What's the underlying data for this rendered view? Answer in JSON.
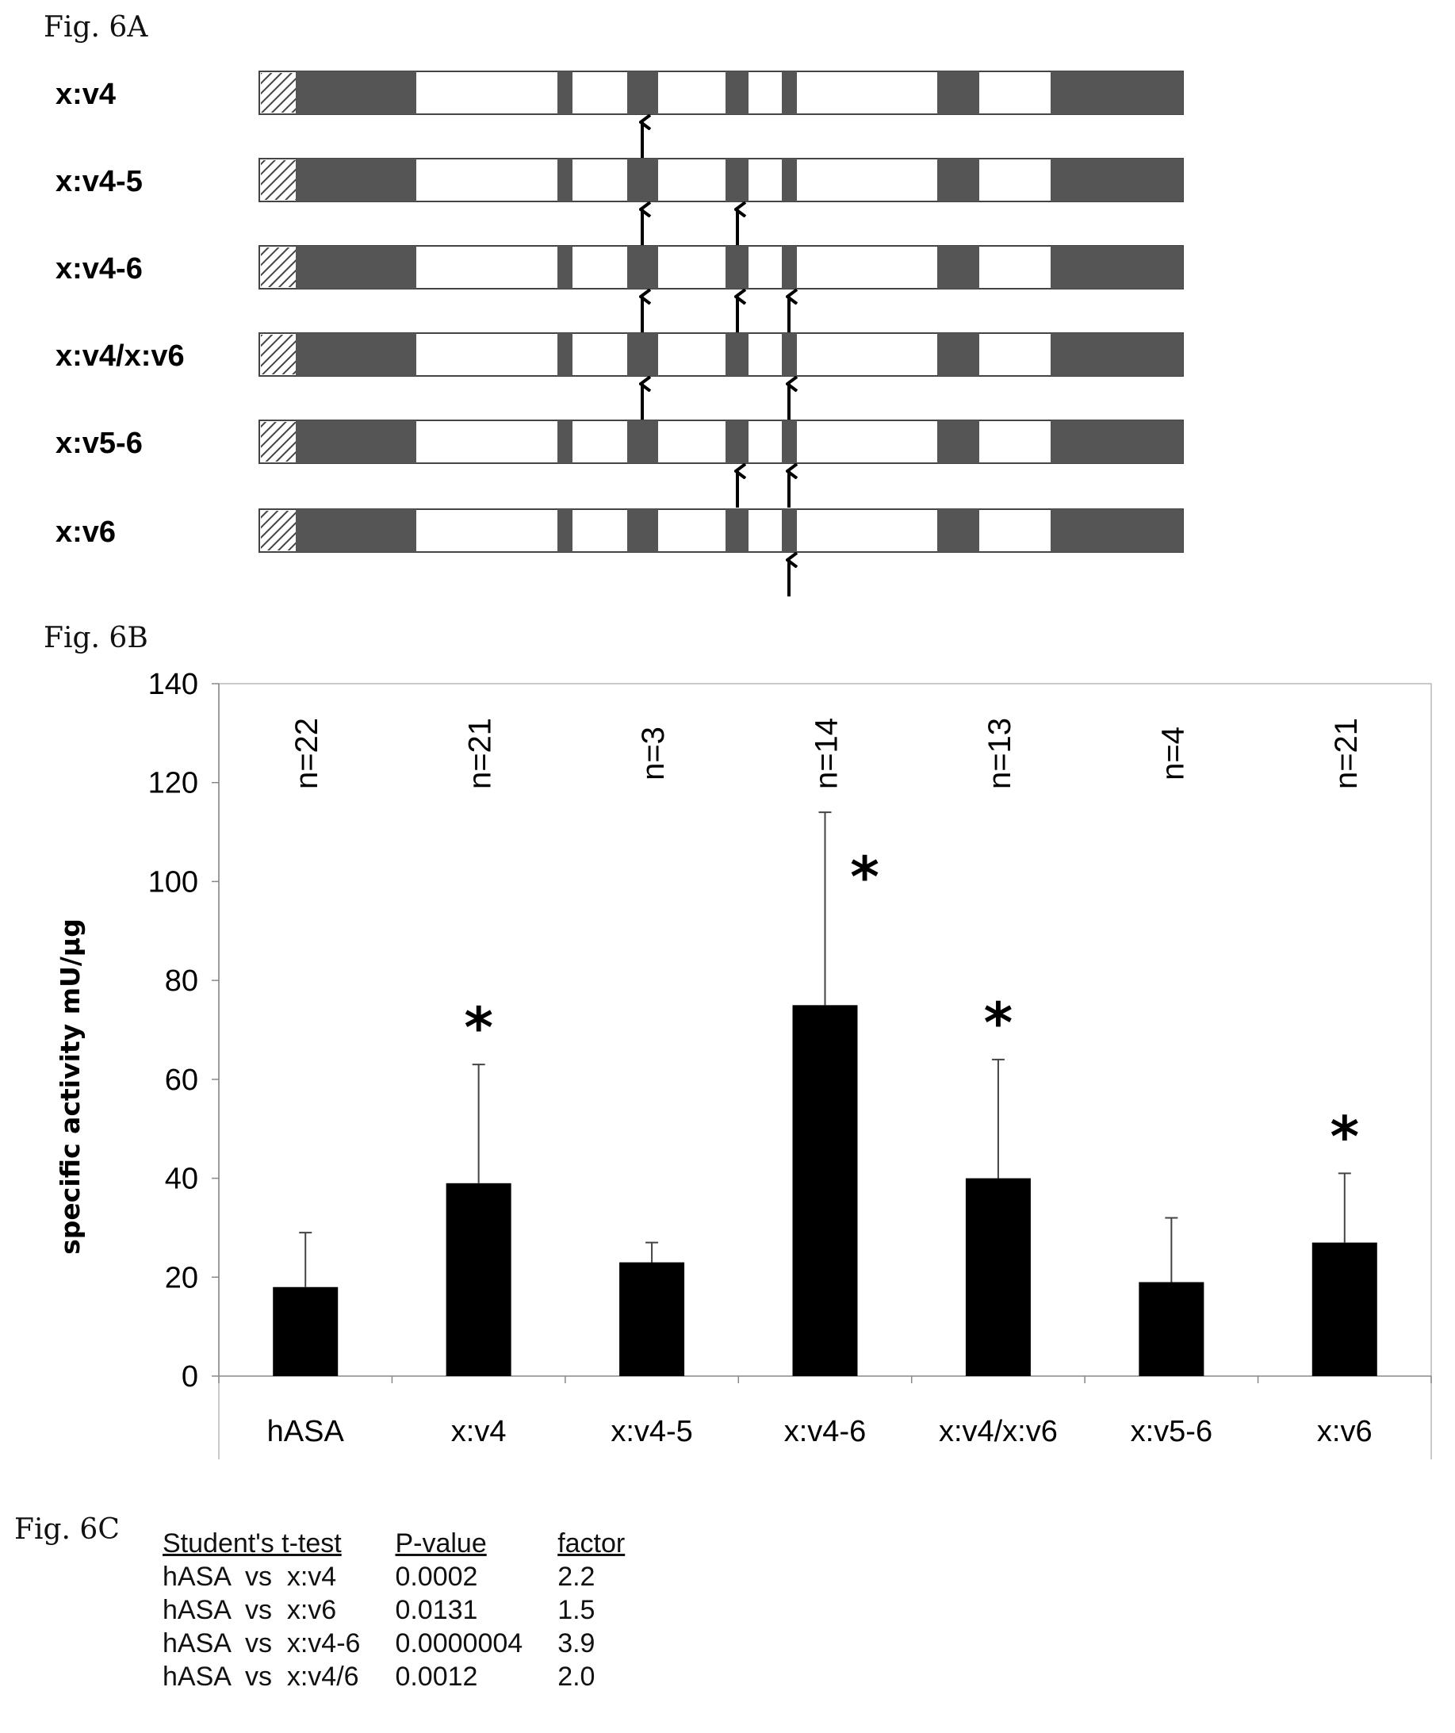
{
  "fig_a": {
    "label": "Fig. 6A",
    "constructs": [
      {
        "name": "x:v4",
        "arrows": [
          "v4"
        ]
      },
      {
        "name": "x:v4-5",
        "arrows": [
          "v4",
          "v5"
        ]
      },
      {
        "name": "x:v4-6",
        "arrows": [
          "v4",
          "v5",
          "v6"
        ]
      },
      {
        "name": "x:v4/x:v6",
        "arrows": [
          "v4",
          "v6"
        ]
      },
      {
        "name": "x:v5-6",
        "arrows": [
          "v5",
          "v6"
        ]
      },
      {
        "name": "x:v6",
        "arrows": [
          "v6"
        ]
      }
    ],
    "colors": {
      "segment_dark": "#555555",
      "segment_light": "#ffffff",
      "outline": "#444444",
      "arrow": "#000000"
    }
  },
  "fig_b": {
    "label": "Fig. 6B",
    "chart_data": {
      "type": "bar",
      "categories": [
        "hASA",
        "x:v4",
        "x:v4-5",
        "x:v4-6",
        "x:v4/x:v6",
        "x:v5-6",
        "x:v6"
      ],
      "values": [
        18,
        39,
        23,
        75,
        40,
        19,
        27
      ],
      "error_upper": [
        29,
        63,
        27,
        114,
        64,
        32,
        41
      ],
      "n_labels": [
        "n=22",
        "n=21",
        "n=3",
        "n=14",
        "n=13",
        "n=4",
        "n=21"
      ],
      "significant": [
        false,
        true,
        false,
        true,
        true,
        false,
        true
      ],
      "significance_marker": "*",
      "ylabel": "specific activity mU/µg",
      "xlabel": "",
      "ylim": [
        0,
        140
      ],
      "yticks": [
        "0",
        "20",
        "40",
        "60",
        "80",
        "100",
        "120",
        "140"
      ],
      "grid": false,
      "bar_color": "#000000"
    }
  },
  "fig_c": {
    "label": "Fig. 6C",
    "headers": [
      "Student's t-test",
      "P-value",
      "factor"
    ],
    "rows": [
      {
        "comparison": "hASA  vs  x:v4",
        "p": "0.0002",
        "factor": "2.2"
      },
      {
        "comparison": "hASA  vs  x:v6",
        "p": "0.0131",
        "factor": "1.5"
      },
      {
        "comparison": "hASA  vs  x:v4-6",
        "p": "0.0000004",
        "factor": "3.9"
      },
      {
        "comparison": "hASA  vs  x:v4/6",
        "p": "0.0012",
        "factor": "2.0"
      }
    ]
  }
}
